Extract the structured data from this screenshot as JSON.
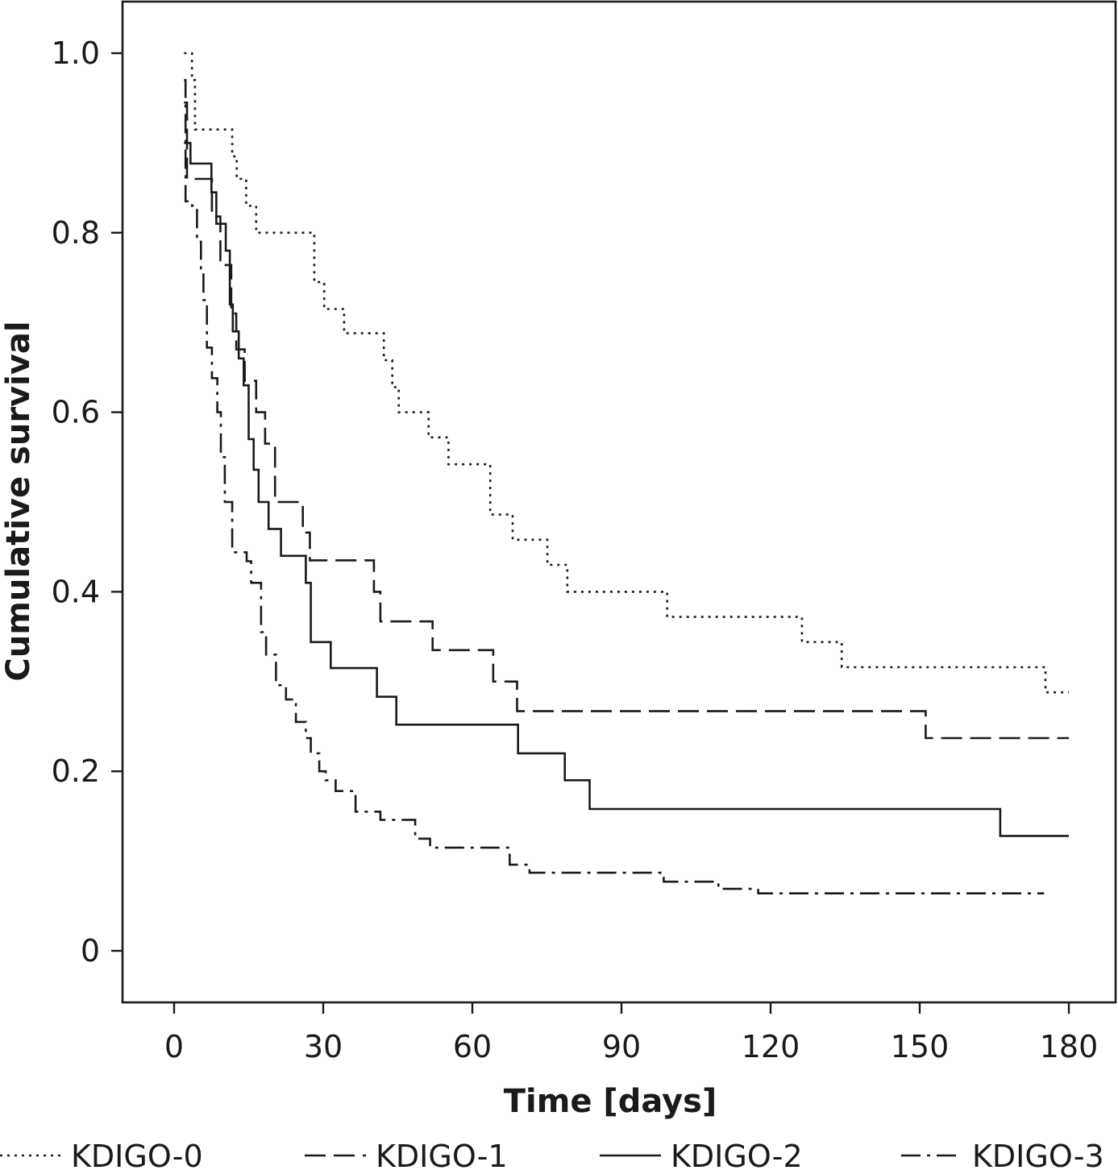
{
  "chart_data": {
    "type": "line",
    "subtype": "step",
    "title": "",
    "xlabel": "Time [days]",
    "ylabel": "Cumulative survival",
    "xlim": [
      -10,
      188
    ],
    "ylim": [
      -0.055,
      1.1
    ],
    "x_ticks": [
      0,
      30,
      60,
      90,
      120,
      150,
      180
    ],
    "x_tick_labels": [
      "0",
      "30",
      "60",
      "90",
      "120",
      "150",
      "180"
    ],
    "y_ticks": [
      0,
      0.2,
      0.4,
      0.6,
      0.8,
      1.0
    ],
    "y_tick_labels": [
      "0",
      "0.2",
      "0.4",
      "0.6",
      "0.8",
      "1.0"
    ],
    "grid": false,
    "legend_position": "bottom",
    "series": [
      {
        "name": "KDIGO-0",
        "dash": "dotted",
        "points": [
          [
            2,
            1.0
          ],
          [
            3.6,
            1.0
          ],
          [
            3.6,
            0.97
          ],
          [
            4.2,
            0.97
          ],
          [
            4.2,
            0.915
          ],
          [
            11.7,
            0.915
          ],
          [
            11.7,
            0.885
          ],
          [
            12.6,
            0.885
          ],
          [
            12.6,
            0.86
          ],
          [
            14.5,
            0.86
          ],
          [
            14.5,
            0.83
          ],
          [
            16.5,
            0.83
          ],
          [
            16.5,
            0.8
          ],
          [
            28.2,
            0.8
          ],
          [
            28.2,
            0.745
          ],
          [
            30.2,
            0.745
          ],
          [
            30.2,
            0.715
          ],
          [
            34.2,
            0.715
          ],
          [
            34.2,
            0.688
          ],
          [
            42.2,
            0.688
          ],
          [
            42.2,
            0.658
          ],
          [
            43.9,
            0.658
          ],
          [
            43.9,
            0.628
          ],
          [
            45.2,
            0.628
          ],
          [
            45.2,
            0.6
          ],
          [
            51.2,
            0.6
          ],
          [
            51.2,
            0.572
          ],
          [
            55.2,
            0.572
          ],
          [
            55.2,
            0.542
          ],
          [
            63.6,
            0.542
          ],
          [
            63.6,
            0.486
          ],
          [
            68.1,
            0.486
          ],
          [
            68.1,
            0.458
          ],
          [
            75.1,
            0.458
          ],
          [
            75.1,
            0.43
          ],
          [
            79.1,
            0.43
          ],
          [
            79.1,
            0.4
          ],
          [
            99.2,
            0.4
          ],
          [
            99.2,
            0.372
          ],
          [
            126.3,
            0.372
          ],
          [
            126.3,
            0.344
          ],
          [
            134.3,
            0.344
          ],
          [
            134.3,
            0.316
          ],
          [
            175.3,
            0.316
          ],
          [
            175.3,
            0.288
          ],
          [
            180,
            0.288
          ]
        ]
      },
      {
        "name": "KDIGO-1",
        "dash": "long-dash",
        "points": [
          [
            2,
            0.945
          ],
          [
            2.6,
            0.945
          ],
          [
            2.6,
            0.86
          ],
          [
            7.6,
            0.86
          ],
          [
            7.6,
            0.818
          ],
          [
            9.3,
            0.818
          ],
          [
            9.3,
            0.764
          ],
          [
            11.5,
            0.764
          ],
          [
            11.5,
            0.71
          ],
          [
            12.5,
            0.71
          ],
          [
            12.5,
            0.67
          ],
          [
            14.2,
            0.67
          ],
          [
            14.2,
            0.635
          ],
          [
            16.5,
            0.635
          ],
          [
            16.5,
            0.6
          ],
          [
            18.3,
            0.6
          ],
          [
            18.3,
            0.565
          ],
          [
            20.3,
            0.565
          ],
          [
            20.3,
            0.5
          ],
          [
            25.9,
            0.5
          ],
          [
            25.9,
            0.466
          ],
          [
            27.3,
            0.466
          ],
          [
            27.3,
            0.435
          ],
          [
            40.2,
            0.435
          ],
          [
            40.2,
            0.4
          ],
          [
            41.5,
            0.4
          ],
          [
            41.5,
            0.367
          ],
          [
            52,
            0.367
          ],
          [
            52,
            0.335
          ],
          [
            64.2,
            0.335
          ],
          [
            64.2,
            0.3
          ],
          [
            69,
            0.3
          ],
          [
            69,
            0.267
          ],
          [
            151.2,
            0.267
          ],
          [
            151.2,
            0.237
          ],
          [
            180,
            0.237
          ]
        ]
      },
      {
        "name": "KDIGO-2",
        "dash": "solid",
        "points": [
          [
            2,
            0.9
          ],
          [
            3.3,
            0.9
          ],
          [
            3.3,
            0.877
          ],
          [
            7.5,
            0.877
          ],
          [
            7.5,
            0.845
          ],
          [
            8.5,
            0.845
          ],
          [
            8.5,
            0.81
          ],
          [
            10.4,
            0.81
          ],
          [
            10.4,
            0.78
          ],
          [
            11.2,
            0.78
          ],
          [
            11.2,
            0.72
          ],
          [
            11.8,
            0.72
          ],
          [
            11.8,
            0.69
          ],
          [
            13,
            0.69
          ],
          [
            13,
            0.66
          ],
          [
            14,
            0.66
          ],
          [
            14,
            0.63
          ],
          [
            15,
            0.63
          ],
          [
            15,
            0.57
          ],
          [
            16,
            0.57
          ],
          [
            16,
            0.536
          ],
          [
            17,
            0.536
          ],
          [
            17,
            0.5
          ],
          [
            19,
            0.5
          ],
          [
            19,
            0.47
          ],
          [
            21.5,
            0.47
          ],
          [
            21.5,
            0.44
          ],
          [
            26.5,
            0.44
          ],
          [
            26.5,
            0.41
          ],
          [
            27.5,
            0.41
          ],
          [
            27.5,
            0.344
          ],
          [
            31.5,
            0.344
          ],
          [
            31.5,
            0.315
          ],
          [
            40.8,
            0.315
          ],
          [
            40.8,
            0.283
          ],
          [
            44.7,
            0.283
          ],
          [
            44.7,
            0.252
          ],
          [
            69.2,
            0.252
          ],
          [
            69.2,
            0.22
          ],
          [
            78.6,
            0.22
          ],
          [
            78.6,
            0.19
          ],
          [
            83.6,
            0.19
          ],
          [
            83.6,
            0.158
          ],
          [
            166.2,
            0.158
          ],
          [
            166.2,
            0.128
          ],
          [
            180,
            0.128
          ]
        ]
      },
      {
        "name": "KDIGO-3",
        "dash": "dash-dot",
        "points": [
          [
            2,
            0.97
          ],
          [
            2.3,
            0.97
          ],
          [
            2.3,
            0.835
          ],
          [
            3.6,
            0.835
          ],
          [
            3.6,
            0.83
          ],
          [
            4.6,
            0.83
          ],
          [
            4.6,
            0.79
          ],
          [
            5.4,
            0.79
          ],
          [
            5.4,
            0.758
          ],
          [
            5.9,
            0.758
          ],
          [
            5.9,
            0.725
          ],
          [
            6.6,
            0.725
          ],
          [
            6.6,
            0.672
          ],
          [
            7.6,
            0.672
          ],
          [
            7.6,
            0.638
          ],
          [
            8.7,
            0.638
          ],
          [
            8.7,
            0.6
          ],
          [
            9.4,
            0.6
          ],
          [
            9.4,
            0.55
          ],
          [
            10.2,
            0.55
          ],
          [
            10.2,
            0.5
          ],
          [
            11.7,
            0.5
          ],
          [
            11.7,
            0.444
          ],
          [
            14.6,
            0.444
          ],
          [
            14.6,
            0.434
          ],
          [
            15.5,
            0.434
          ],
          [
            15.5,
            0.41
          ],
          [
            17.5,
            0.41
          ],
          [
            17.5,
            0.355
          ],
          [
            18.5,
            0.355
          ],
          [
            18.5,
            0.33
          ],
          [
            20.5,
            0.33
          ],
          [
            20.5,
            0.296
          ],
          [
            22.5,
            0.296
          ],
          [
            22.5,
            0.28
          ],
          [
            24.5,
            0.28
          ],
          [
            24.5,
            0.255
          ],
          [
            26.5,
            0.255
          ],
          [
            26.5,
            0.237
          ],
          [
            27.5,
            0.237
          ],
          [
            27.5,
            0.22
          ],
          [
            29.2,
            0.22
          ],
          [
            29.2,
            0.2
          ],
          [
            30.5,
            0.2
          ],
          [
            30.5,
            0.19
          ],
          [
            32.5,
            0.19
          ],
          [
            32.5,
            0.178
          ],
          [
            36.5,
            0.178
          ],
          [
            36.5,
            0.155
          ],
          [
            41.5,
            0.155
          ],
          [
            41.5,
            0.146
          ],
          [
            48.5,
            0.146
          ],
          [
            48.5,
            0.125
          ],
          [
            51.5,
            0.125
          ],
          [
            51.5,
            0.115
          ],
          [
            67.5,
            0.115
          ],
          [
            67.5,
            0.096
          ],
          [
            71.5,
            0.096
          ],
          [
            71.5,
            0.087
          ],
          [
            98.5,
            0.087
          ],
          [
            98.5,
            0.077
          ],
          [
            109.5,
            0.077
          ],
          [
            109.5,
            0.069
          ],
          [
            117.5,
            0.069
          ],
          [
            117.5,
            0.064
          ],
          [
            175,
            0.064
          ]
        ]
      }
    ]
  }
}
